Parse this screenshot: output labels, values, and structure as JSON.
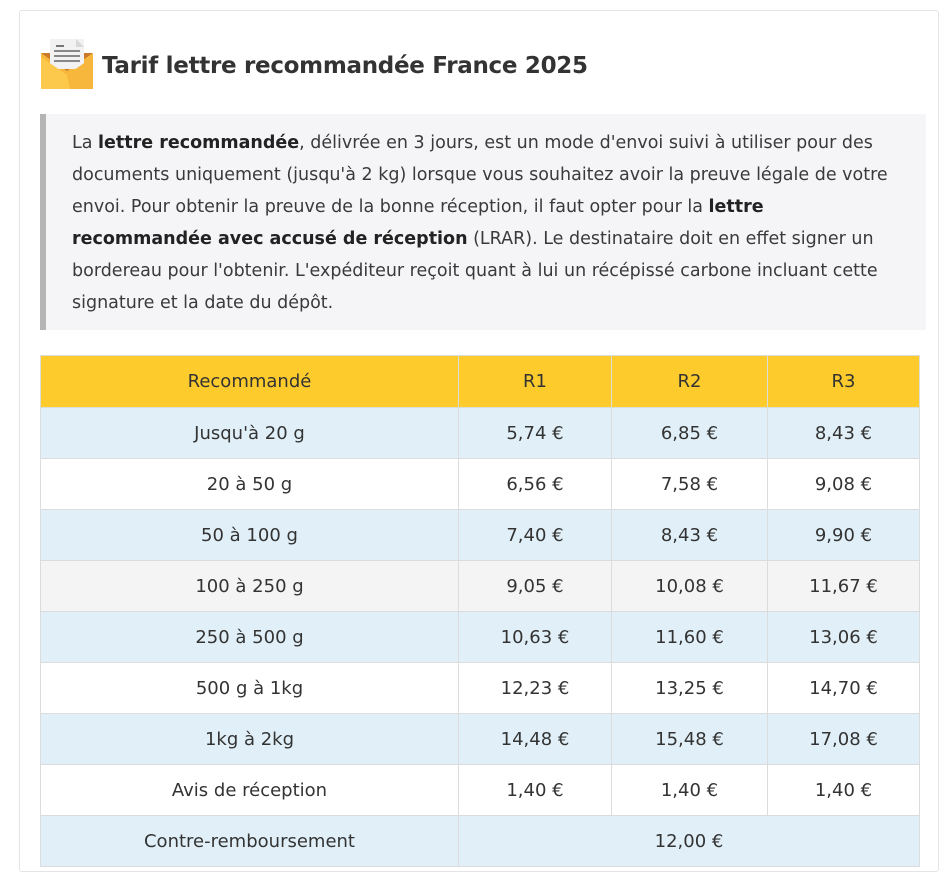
{
  "title": "Tarif lettre recommandée France 2025",
  "icon": "envelope-letter-icon",
  "intro": {
    "t1": "La ",
    "b1": "lettre recommandée",
    "t2": ", délivrée en 3 jours, est un mode d'envoi suivi à utiliser pour des documents uniquement (jusqu'à 2 kg) lorsque vous souhaitez avoir la preuve légale de votre envoi. Pour obtenir la preuve de la bonne réception, il faut opter pour la ",
    "b2": "lettre recommandée avec accusé de réception",
    "t3": " (LRAR). Le destinataire doit en effet signer un bordereau pour l'obtenir. L'expéditeur reçoit quant à lui un récépissé carbone incluant cette signature et la date du dépôt."
  },
  "table": {
    "headers": [
      "Recommandé",
      "R1",
      "R2",
      "R3"
    ],
    "rows": [
      [
        "Jusqu'à 20 g",
        "5,74 €",
        "6,85 €",
        "8,43 €"
      ],
      [
        "20 à 50 g",
        "6,56 €",
        "7,58 €",
        "9,08 €"
      ],
      [
        "50 à 100 g",
        "7,40 €",
        "8,43 €",
        "9,90 €"
      ],
      [
        "100 à 250 g",
        "9,05 €",
        "10,08 €",
        "11,67 €"
      ],
      [
        "250 à 500 g",
        "10,63 €",
        "11,60 €",
        "13,06 €"
      ],
      [
        "500 g à 1kg",
        "12,23 €",
        "13,25 €",
        "14,70 €"
      ],
      [
        "1kg à 2kg",
        "14,48 €",
        "15,48 €",
        "17,08 €"
      ],
      [
        "Avis de réception",
        "1,40 €",
        "1,40 €",
        "1,40 €"
      ]
    ],
    "last_row": [
      "Contre-remboursement",
      "12,00 €"
    ]
  }
}
